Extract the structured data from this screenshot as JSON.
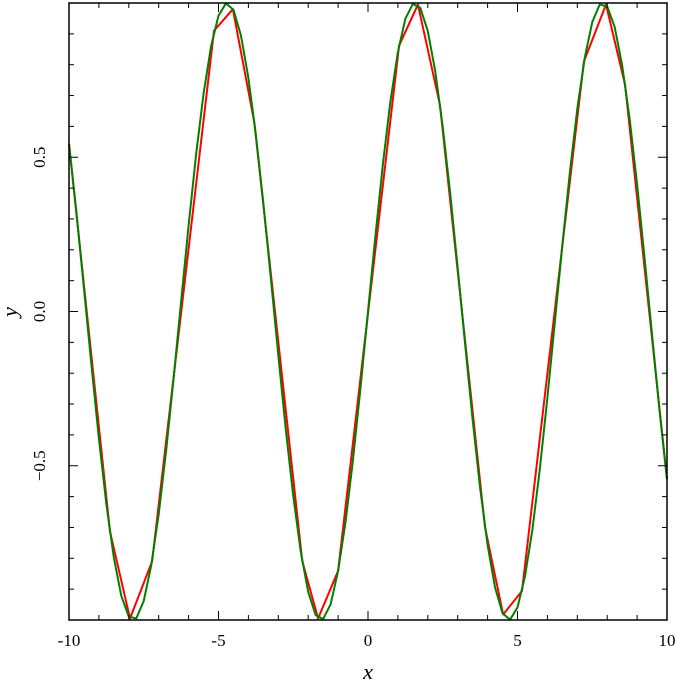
{
  "chart_data": {
    "type": "line",
    "xlabel": "x",
    "ylabel": "y",
    "xlim": [
      -10,
      10
    ],
    "ylim": [
      -1,
      1
    ],
    "xticks": [
      -10,
      -5,
      0,
      5,
      10
    ],
    "yticks": [
      {
        "value": -0.5,
        "label": "−0.5"
      },
      {
        "value": 0,
        "label": "0.0"
      },
      {
        "value": 0.5,
        "label": "0.5"
      }
    ],
    "xminorticks": [
      -9,
      -8,
      -7,
      -6,
      -4,
      -3,
      -2,
      -1,
      1,
      2,
      3,
      4,
      6,
      7,
      8,
      9
    ],
    "yminorticks": [
      -0.9,
      -0.8,
      -0.7,
      -0.6,
      -0.4,
      -0.3,
      -0.2,
      -0.1,
      0.1,
      0.2,
      0.3,
      0.4,
      0.6,
      0.7,
      0.8,
      0.9
    ],
    "series": [
      {
        "color": "#ff0000",
        "x": [
          -10,
          -8.63,
          -7.96,
          -7.22,
          -5.15,
          -4.52,
          -3.8,
          -2.2,
          -1.67,
          -1.0,
          1.04,
          1.67,
          2.41,
          3.91,
          4.52,
          5.15,
          7.22,
          7.96,
          8.6,
          10
        ],
        "values": [
          0.544,
          -0.713,
          -0.995,
          -0.81,
          0.91,
          0.98,
          0.612,
          -0.808,
          -0.995,
          -0.841,
          0.862,
          0.995,
          0.668,
          -0.698,
          -0.982,
          -0.906,
          0.81,
          0.995,
          0.734,
          -0.544
        ]
      },
      {
        "color": "#008000",
        "x": [
          -10,
          -9.75,
          -9.5,
          -9.25,
          -9,
          -8.75,
          -8.5,
          -8.25,
          -8,
          -7.75,
          -7.5,
          -7.25,
          -7,
          -6.75,
          -6.5,
          -6.25,
          -6,
          -5.75,
          -5.5,
          -5.25,
          -5,
          -4.75,
          -4.5,
          -4.25,
          -4,
          -3.75,
          -3.5,
          -3.25,
          -3,
          -2.75,
          -2.5,
          -2.25,
          -2,
          -1.75,
          -1.5,
          -1.25,
          -1,
          -0.75,
          -0.5,
          -0.25,
          0,
          0.25,
          0.5,
          0.75,
          1,
          1.25,
          1.5,
          1.75,
          2,
          2.25,
          2.5,
          2.75,
          3,
          3.25,
          3.5,
          3.75,
          4,
          4.25,
          4.5,
          4.75,
          5,
          5.25,
          5.5,
          5.75,
          6,
          6.25,
          6.5,
          6.75,
          7,
          7.25,
          7.5,
          7.75,
          8,
          8.25,
          8.5,
          8.75,
          9,
          9.25,
          9.5,
          9.75,
          10
        ],
        "values": [
          0.544,
          0.32,
          0.075,
          -0.173,
          -0.412,
          -0.625,
          -0.798,
          -0.922,
          -0.989,
          -0.995,
          -0.938,
          -0.823,
          -0.657,
          -0.45,
          -0.215,
          0.033,
          0.279,
          0.508,
          0.706,
          0.859,
          0.959,
          0.999,
          0.978,
          0.895,
          0.757,
          0.572,
          0.351,
          0.108,
          -0.141,
          -0.382,
          -0.598,
          -0.778,
          -0.909,
          -0.984,
          -0.997,
          -0.949,
          -0.841,
          -0.682,
          -0.479,
          -0.247,
          0,
          0.247,
          0.479,
          0.682,
          0.841,
          0.949,
          0.997,
          0.984,
          0.909,
          0.778,
          0.598,
          0.382,
          0.141,
          -0.108,
          -0.351,
          -0.572,
          -0.757,
          -0.895,
          -0.978,
          -0.999,
          -0.959,
          -0.859,
          -0.706,
          -0.508,
          -0.279,
          -0.033,
          0.215,
          0.45,
          0.657,
          0.823,
          0.938,
          0.995,
          0.989,
          0.922,
          0.798,
          0.625,
          0.412,
          0.173,
          -0.075,
          -0.32,
          -0.544
        ]
      }
    ]
  }
}
